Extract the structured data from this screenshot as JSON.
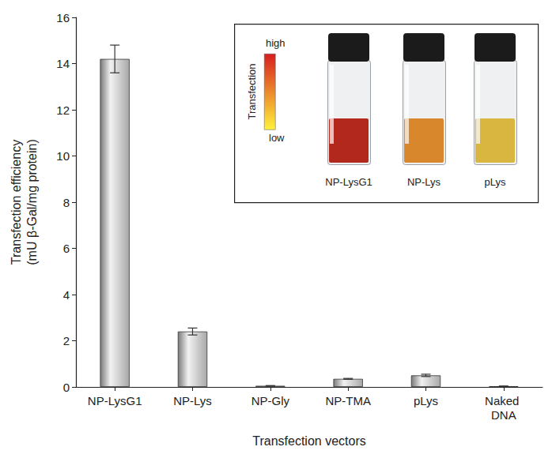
{
  "chart_data": {
    "type": "bar",
    "x_label": "Transfection vectors",
    "y_label": "Transfection efficiency\n(mU β-Gal/mg protein)",
    "categories": [
      "NP-LysG1",
      "NP-Lys",
      "NP-Gly",
      "NP-TMA",
      "pLys",
      "Naked DNA"
    ],
    "values": [
      14.2,
      2.4,
      0.05,
      0.35,
      0.5,
      0.03
    ],
    "errors": [
      0.6,
      0.15,
      0.01,
      0.02,
      0.05,
      0.01
    ],
    "color": "#a8a8a8",
    "ylim": [
      0,
      16
    ],
    "yticks": [
      0,
      2,
      4,
      6,
      8,
      10,
      12,
      14,
      16
    ],
    "grid": false,
    "inset": {
      "scale_title": "Transfection",
      "high": "high",
      "low": "low",
      "high_color": "#d81e1e",
      "low_color": "#fff23a",
      "samples": [
        {
          "label": "NP-LysG1",
          "color": "#b3281c"
        },
        {
          "label": "NP-Lys",
          "color": "#d9872c"
        },
        {
          "label": "pLys",
          "color": "#d9b640"
        }
      ]
    }
  }
}
